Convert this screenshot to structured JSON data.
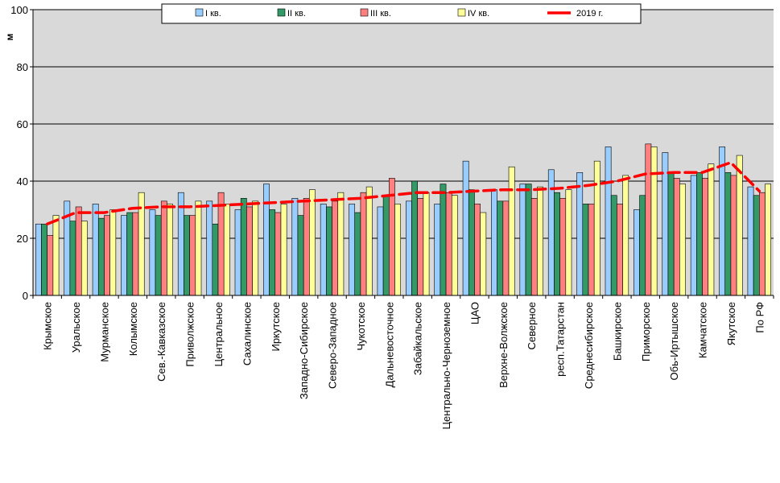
{
  "chart_data": {
    "type": "bar",
    "ylabel": "м",
    "ylim": [
      0,
      100
    ],
    "yticks": [
      0,
      20,
      40,
      60,
      80,
      100
    ],
    "grid": true,
    "legend_position": "top-center",
    "categories": [
      "Крымское",
      "Уральское",
      "Мурманское",
      "Колымское",
      "Сев.-Кавказское",
      "Приволжское",
      "Центральное",
      "Сахалинское",
      "Иркутское",
      "Западно-Сибирское",
      "Северо-Западное",
      "Чукотское",
      "Дальневосточное",
      "Забайкальское",
      "Центрально-Черноземное",
      "ЦАО",
      "Верхне-Волжское",
      "Северное",
      "респ.Татарстан",
      "Среднесибирское",
      "Башкирское",
      "Приморское",
      "Обь-Иртышское",
      "Камчатское",
      "Якутское",
      "По РФ"
    ],
    "series": [
      {
        "name": "I кв.",
        "color": "#99ccff",
        "values": [
          25,
          33,
          32,
          28,
          30,
          36,
          33,
          30,
          39,
          34,
          32,
          32,
          31,
          33,
          32,
          47,
          37,
          39,
          44,
          43,
          52,
          30,
          50,
          42,
          52,
          38
        ]
      },
      {
        "name": "II кв.",
        "color": "#339966",
        "values": [
          25,
          26,
          27,
          29,
          28,
          28,
          25,
          34,
          30,
          28,
          31,
          29,
          35,
          40,
          39,
          37,
          33,
          39,
          36,
          32,
          35,
          35,
          43,
          43,
          43,
          35
        ]
      },
      {
        "name": "III кв.",
        "color": "#ff8080",
        "values": [
          21,
          31,
          28,
          29,
          33,
          28,
          36,
          31,
          29,
          34,
          33,
          36,
          41,
          34,
          36,
          32,
          33,
          34,
          34,
          32,
          32,
          53,
          41,
          41,
          42,
          36
        ]
      },
      {
        "name": "IV кв.",
        "color": "#ffff99",
        "values": [
          28,
          26,
          30,
          36,
          32,
          33,
          32,
          33,
          32,
          37,
          36,
          38,
          32,
          36,
          35,
          29,
          45,
          38,
          37,
          47,
          42,
          52,
          39,
          46,
          49,
          39
        ]
      }
    ],
    "line_series": {
      "name": "2019 г.",
      "color": "#ff0000",
      "values": [
        25,
        29,
        29,
        30.5,
        31,
        31,
        31.5,
        32,
        32.5,
        33,
        33.5,
        34,
        35,
        36,
        36,
        36.5,
        37,
        37,
        37.5,
        38.5,
        40,
        42.5,
        43,
        43,
        46.5,
        36.5
      ]
    }
  }
}
